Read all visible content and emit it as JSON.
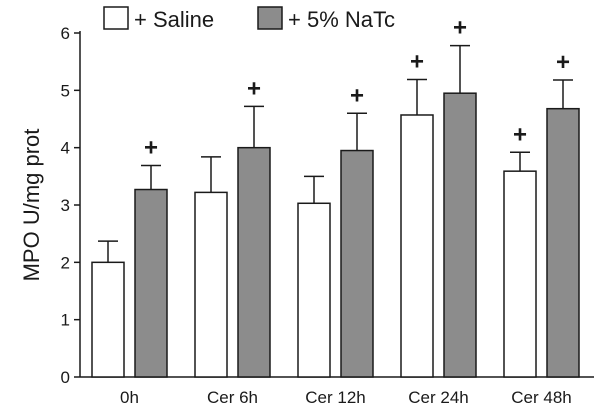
{
  "chart_data": {
    "type": "bar",
    "ylabel": "MPO U/mg prot",
    "xlabel": "",
    "ylim": [
      0,
      6
    ],
    "yticks": [
      "0",
      "1",
      "2",
      "3",
      "4",
      "5",
      "6"
    ],
    "categories": [
      "0h",
      "Cer 6h",
      "Cer 12h",
      "Cer 24h",
      "Cer 48h"
    ],
    "series": [
      {
        "name": "+ Saline",
        "color": "#ffffff",
        "values": [
          2.0,
          3.22,
          3.03,
          4.57,
          3.59
        ],
        "errors": [
          0.37,
          0.62,
          0.47,
          0.62,
          0.33
        ],
        "markers": [
          "",
          "",
          "",
          "+",
          "+"
        ]
      },
      {
        "name": "+ 5% NaTc",
        "color": "#8c8c8c",
        "values": [
          3.27,
          4.0,
          3.95,
          4.95,
          4.68
        ],
        "errors": [
          0.42,
          0.72,
          0.65,
          0.83,
          0.5
        ],
        "markers": [
          "+",
          "+",
          "+",
          "+",
          "+"
        ]
      }
    ],
    "grid": false,
    "legend_position": "top"
  }
}
